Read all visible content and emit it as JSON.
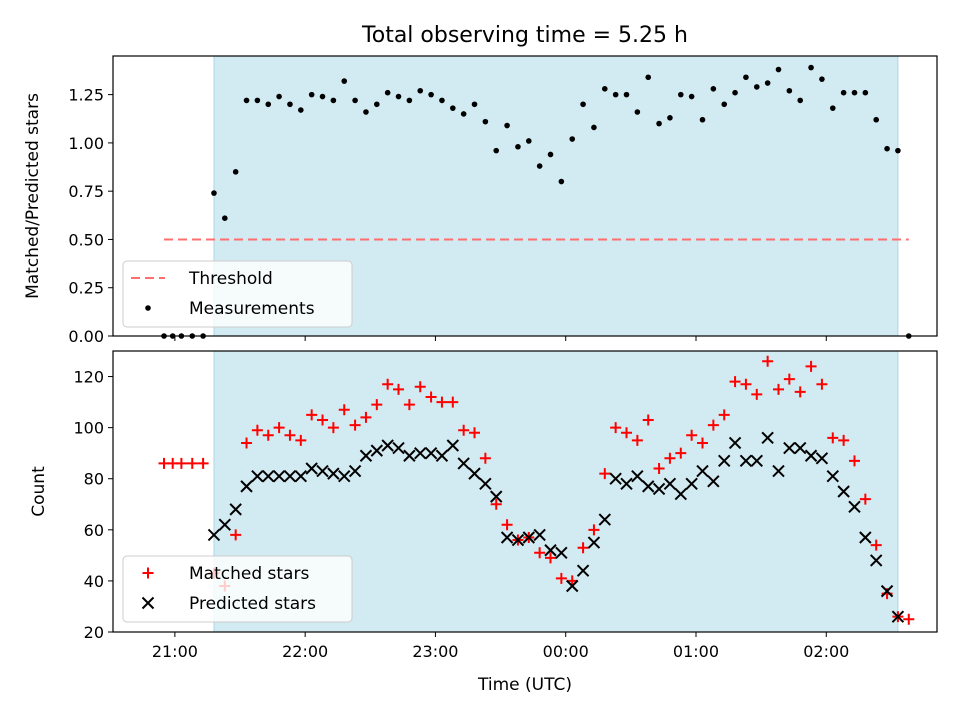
{
  "title": "Total observing time = 5.25 h",
  "xlabel": "Time (UTC)",
  "colors": {
    "shade": "#add8e6",
    "threshold": "#ff6f6f",
    "matched": "#ff0000",
    "predicted": "#000000",
    "measurement": "#000000"
  },
  "chart_data": [
    {
      "type": "scatter",
      "ylabel": "Matched/Predicted stars",
      "ylim": [
        0,
        1.45
      ],
      "yticks": [
        "0.00",
        "0.25",
        "0.50",
        "0.75",
        "1.00",
        "1.25"
      ],
      "xticks": [],
      "shaded_interval": [
        "21:18",
        "02:33"
      ],
      "threshold": {
        "name": "Threshold",
        "value": 0.5,
        "x_range": [
          "20:55",
          "02:38"
        ]
      },
      "legend": {
        "position": "lower-left",
        "entries": [
          "Threshold",
          "Measurements"
        ]
      },
      "series": [
        {
          "name": "Measurements",
          "x": [
            "20:55",
            "20:59",
            "21:03",
            "21:08",
            "21:13",
            "21:18",
            "21:23",
            "21:28",
            "21:33",
            "21:38",
            "21:43",
            "21:48",
            "21:53",
            "21:58",
            "22:03",
            "22:08",
            "22:13",
            "22:18",
            "22:23",
            "22:28",
            "22:33",
            "22:38",
            "22:43",
            "22:48",
            "22:53",
            "22:58",
            "23:03",
            "23:08",
            "23:13",
            "23:18",
            "23:23",
            "23:28",
            "23:33",
            "23:38",
            "23:43",
            "23:48",
            "23:53",
            "23:58",
            "00:03",
            "00:08",
            "00:13",
            "00:18",
            "00:23",
            "00:28",
            "00:33",
            "00:38",
            "00:43",
            "00:48",
            "00:53",
            "00:58",
            "01:03",
            "01:08",
            "01:13",
            "01:18",
            "01:23",
            "01:28",
            "01:33",
            "01:38",
            "01:43",
            "01:48",
            "01:53",
            "01:58",
            "02:03",
            "02:08",
            "02:13",
            "02:18",
            "02:23",
            "02:28",
            "02:33",
            "02:38"
          ],
          "y": [
            0.0,
            0.0,
            0.0,
            0.0,
            0.0,
            0.74,
            0.61,
            0.85,
            1.22,
            1.22,
            1.2,
            1.24,
            1.2,
            1.17,
            1.25,
            1.24,
            1.22,
            1.32,
            1.22,
            1.16,
            1.2,
            1.26,
            1.24,
            1.22,
            1.27,
            1.25,
            1.22,
            1.18,
            1.15,
            1.2,
            1.11,
            0.96,
            1.09,
            0.98,
            1.01,
            0.88,
            0.94,
            0.8,
            1.02,
            1.2,
            1.08,
            1.28,
            1.25,
            1.25,
            1.16,
            1.34,
            1.1,
            1.13,
            1.25,
            1.24,
            1.12,
            1.28,
            1.2,
            1.26,
            1.34,
            1.29,
            1.31,
            1.38,
            1.27,
            1.22,
            1.39,
            1.33,
            1.18,
            1.26,
            1.26,
            1.26,
            1.12,
            0.97,
            0.96,
            0.0
          ]
        }
      ]
    },
    {
      "type": "scatter",
      "ylabel": "Count",
      "ylim": [
        20,
        130
      ],
      "yticks": [
        "20",
        "40",
        "60",
        "80",
        "100",
        "120"
      ],
      "xticks": [
        "21:00",
        "22:00",
        "23:00",
        "00:00",
        "01:00",
        "02:00"
      ],
      "shaded_interval": [
        "21:18",
        "02:33"
      ],
      "legend": {
        "position": "lower-left",
        "entries": [
          "Matched stars",
          "Predicted stars"
        ]
      },
      "series": [
        {
          "name": "Matched stars",
          "marker": "plus",
          "x": [
            "20:55",
            "20:59",
            "21:03",
            "21:08",
            "21:13",
            "21:18",
            "21:23",
            "21:28",
            "21:33",
            "21:38",
            "21:43",
            "21:48",
            "21:53",
            "21:58",
            "22:03",
            "22:08",
            "22:13",
            "22:18",
            "22:23",
            "22:28",
            "22:33",
            "22:38",
            "22:43",
            "22:48",
            "22:53",
            "22:58",
            "23:03",
            "23:08",
            "23:13",
            "23:18",
            "23:23",
            "23:28",
            "23:33",
            "23:38",
            "23:43",
            "23:48",
            "23:53",
            "23:58",
            "00:03",
            "00:08",
            "00:13",
            "00:18",
            "00:23",
            "00:28",
            "00:33",
            "00:38",
            "00:43",
            "00:48",
            "00:53",
            "00:58",
            "01:03",
            "01:08",
            "01:13",
            "01:18",
            "01:23",
            "01:28",
            "01:33",
            "01:38",
            "01:43",
            "01:48",
            "01:53",
            "01:58",
            "02:03",
            "02:08",
            "02:13",
            "02:18",
            "02:23",
            "02:28",
            "02:33",
            "02:38"
          ],
          "y": [
            86,
            86,
            86,
            86,
            86,
            43,
            38,
            58,
            94,
            99,
            97,
            100,
            97,
            95,
            105,
            103,
            100,
            107,
            101,
            104,
            109,
            117,
            115,
            109,
            116,
            112,
            110,
            110,
            99,
            98,
            88,
            70,
            62,
            56,
            57,
            51,
            49,
            41,
            40,
            53,
            60,
            82,
            100,
            98,
            95,
            103,
            84,
            88,
            90,
            97,
            94,
            101,
            105,
            118,
            117,
            113,
            126,
            115,
            119,
            114,
            124,
            117,
            96,
            95,
            87,
            72,
            54,
            35,
            26,
            25
          ]
        },
        {
          "name": "Predicted stars",
          "marker": "x",
          "x": [
            "21:18",
            "21:23",
            "21:28",
            "21:33",
            "21:38",
            "21:43",
            "21:48",
            "21:53",
            "21:58",
            "22:03",
            "22:08",
            "22:13",
            "22:18",
            "22:23",
            "22:28",
            "22:33",
            "22:38",
            "22:43",
            "22:48",
            "22:53",
            "22:58",
            "23:03",
            "23:08",
            "23:13",
            "23:18",
            "23:23",
            "23:28",
            "23:33",
            "23:38",
            "23:43",
            "23:48",
            "23:53",
            "23:58",
            "00:03",
            "00:08",
            "00:13",
            "00:18",
            "00:23",
            "00:28",
            "00:33",
            "00:38",
            "00:43",
            "00:48",
            "00:53",
            "00:58",
            "01:03",
            "01:08",
            "01:13",
            "01:18",
            "01:23",
            "01:28",
            "01:33",
            "01:38",
            "01:43",
            "01:48",
            "01:53",
            "01:58",
            "02:03",
            "02:08",
            "02:13",
            "02:18",
            "02:23",
            "02:28",
            "02:33"
          ],
          "y": [
            58,
            62,
            68,
            77,
            81,
            81,
            81,
            81,
            81,
            84,
            83,
            82,
            81,
            83,
            89,
            91,
            93,
            92,
            89,
            90,
            90,
            89,
            93,
            86,
            82,
            78,
            73,
            57,
            56,
            57,
            58,
            52,
            51,
            38,
            44,
            55,
            64,
            80,
            78,
            81,
            77,
            76,
            78,
            74,
            78,
            83,
            79,
            87,
            94,
            87,
            87,
            96,
            83,
            92,
            92,
            89,
            88,
            81,
            75,
            69,
            57,
            48,
            36,
            26
          ]
        }
      ]
    }
  ]
}
